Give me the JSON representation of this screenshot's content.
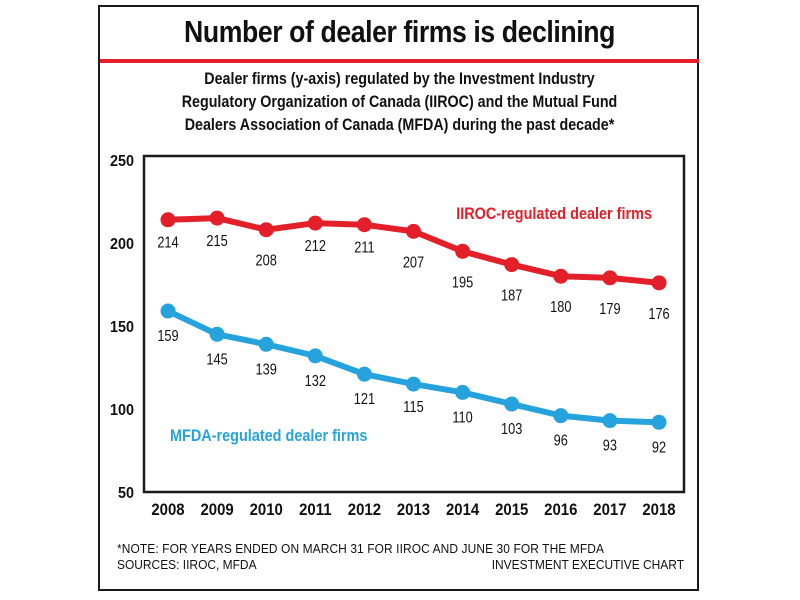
{
  "header": {
    "title": "Number of dealer firms is declining",
    "subtitle_lines": [
      "Dealer firms (y-axis) regulated by the Investment Industry",
      "Regulatory Organization of Canada (IIROC) and the Mutual Fund",
      "Dealers Association of Canada (MFDA) during the past decade*"
    ]
  },
  "footer": {
    "note": "*NOTE: FOR YEARS ENDED ON MARCH 31 FOR IIROC AND JUNE 30 FOR THE MFDA",
    "sources": "SOURCES: IIROC, MFDA",
    "credit": "INVESTMENT EXECUTIVE CHART"
  },
  "colors": {
    "accent_red": "#e3202a",
    "iiroc": "#e3202a",
    "mfda": "#26a3dd",
    "frame": "#1a1a1a"
  },
  "chart_data": {
    "type": "line",
    "title": "Number of dealer firms is declining",
    "xlabel": "",
    "ylabel": "Dealer firms",
    "x": [
      "2008",
      "2009",
      "2010",
      "2011",
      "2012",
      "2013",
      "2014",
      "2015",
      "2016",
      "2017",
      "2018"
    ],
    "yticks": [
      50,
      100,
      150,
      200,
      250
    ],
    "ylim": [
      50,
      250
    ],
    "grid": false,
    "legend": "inline-labels",
    "series": [
      {
        "name": "IIROC-regulated dealer firms",
        "color": "#e3202a",
        "values": [
          214,
          215,
          208,
          212,
          211,
          207,
          195,
          187,
          180,
          179,
          176
        ]
      },
      {
        "name": "MFDA-regulated dealer firms",
        "color": "#26a3dd",
        "values": [
          159,
          145,
          139,
          132,
          121,
          115,
          110,
          103,
          96,
          93,
          92
        ]
      }
    ]
  }
}
